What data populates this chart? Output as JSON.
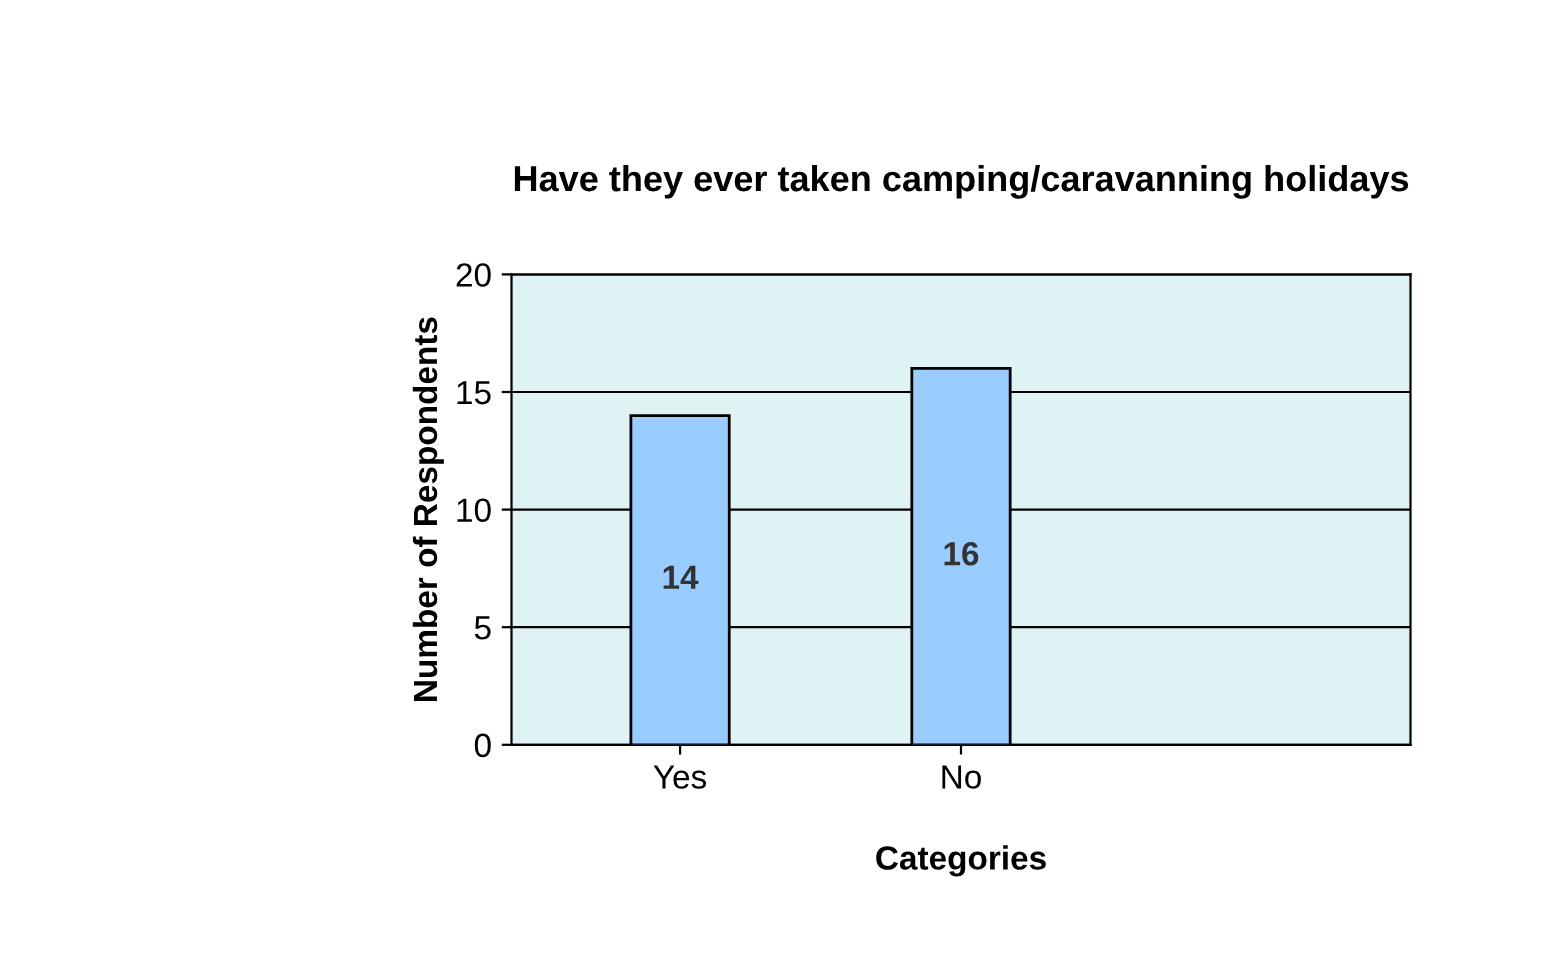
{
  "chart_data": {
    "type": "bar",
    "title": "Have they ever taken camping/caravanning holidays",
    "xlabel": "Categories",
    "ylabel": "Number of Respondents",
    "categories": [
      "Yes",
      "No"
    ],
    "values": [
      14,
      16
    ],
    "color": "#99ccff",
    "data_labels": true,
    "ylim": [
      0,
      20
    ],
    "yticks": [
      0,
      5,
      10,
      15,
      20
    ],
    "grid": "y",
    "legend": false
  }
}
